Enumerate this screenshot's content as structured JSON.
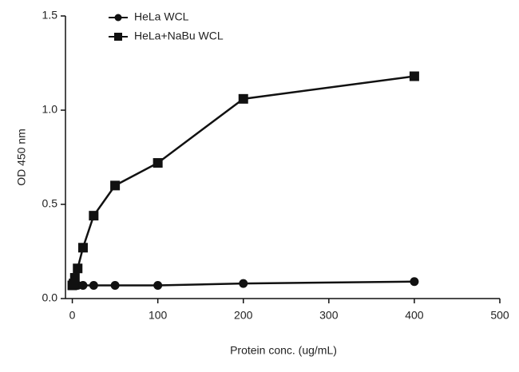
{
  "chart_data": {
    "type": "scatter",
    "x_label": "Protein conc. (ug/mL)",
    "y_label": "OD 450 nm",
    "xlim": [
      -8,
      500
    ],
    "xticks": [
      0,
      100,
      200,
      300,
      400,
      500
    ],
    "ylim": [
      0,
      1.5
    ],
    "yticks": [
      {
        "value": 0,
        "label": "0.0"
      },
      0.5,
      {
        "value": 1,
        "label": "1.0"
      },
      1.5
    ],
    "grid": false,
    "legend": "upper left",
    "series": [
      {
        "name": "HeLa WCL",
        "color": "#111111",
        "marker": "circle",
        "x": [
          0,
          1.5,
          3,
          6.25,
          12.5,
          25,
          50,
          100,
          200,
          400
        ],
        "values": [
          0.07,
          0.07,
          0.07,
          0.07,
          0.07,
          0.07,
          0.07,
          0.07,
          0.08,
          0.09
        ]
      },
      {
        "name": "HeLa+NaBu WCL",
        "color": "#111111",
        "marker": "square",
        "x": [
          0,
          1.5,
          3,
          6.25,
          12.5,
          25,
          50,
          100,
          200,
          400
        ],
        "values": [
          0.07,
          0.08,
          0.11,
          0.16,
          0.27,
          0.44,
          0.6,
          0.72,
          1.06,
          1.18
        ]
      }
    ]
  }
}
